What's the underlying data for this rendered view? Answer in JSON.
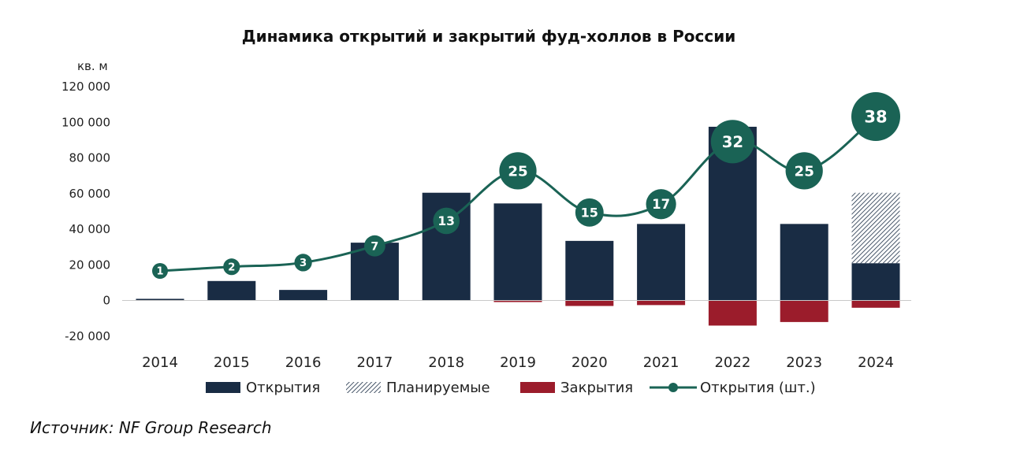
{
  "chart_data": {
    "type": "bar",
    "title": "Динамика открытий и закрытий фуд-холлов в России",
    "ylabel": "кв. м",
    "ylim": [
      -20000,
      120000
    ],
    "yticks": [
      120000,
      100000,
      80000,
      60000,
      40000,
      20000,
      0,
      -20000
    ],
    "ytick_labels": [
      "120 000",
      "100 000",
      "80 000",
      "60 000",
      "40 000",
      "20 000",
      "0",
      "-20 000"
    ],
    "categories": [
      "2014",
      "2015",
      "2016",
      "2017",
      "2018",
      "2019",
      "2020",
      "2021",
      "2022",
      "2023",
      "2024"
    ],
    "series": [
      {
        "name": "Открытия",
        "kind": "bar",
        "color": "#192c44",
        "values": [
          1000,
          11000,
          6000,
          32500,
          60500,
          54500,
          33500,
          43000,
          97500,
          43000,
          21000
        ]
      },
      {
        "name": "Планируемые",
        "kind": "bar-stacked-hatched",
        "color": "#192c44",
        "values": [
          0,
          0,
          0,
          0,
          0,
          0,
          0,
          0,
          0,
          0,
          39500
        ]
      },
      {
        "name": "Закрытия",
        "kind": "bar",
        "color": "#9b1c2b",
        "values": [
          0,
          0,
          0,
          0,
          0,
          -800,
          -3000,
          -2500,
          -14000,
          -12000,
          -4000
        ]
      },
      {
        "name": "Открытия (шт.)",
        "kind": "line",
        "color": "#1a6355",
        "values": [
          1,
          2,
          3,
          7,
          13,
          25,
          15,
          17,
          32,
          25,
          38
        ]
      }
    ],
    "legend_position": "bottom",
    "grid": false
  },
  "source": "Источник: NF Group Research"
}
